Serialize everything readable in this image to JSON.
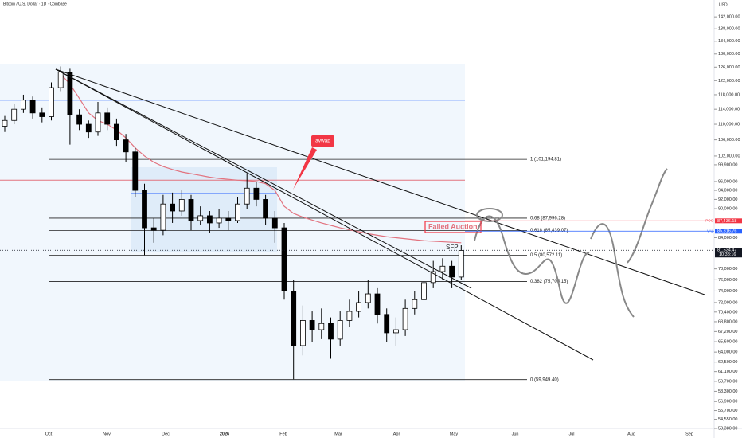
{
  "header": {
    "title": "Bitcoin / U.S. Dollar · 1D · Coinbase",
    "currency": "USD"
  },
  "chart_data": {
    "type": "candlestick",
    "log_scale": true,
    "up_color": "#ffffff",
    "down_color": "#000000",
    "ylim": [
      53380,
      147800
    ],
    "yticks": [
      {
        "value": 142000,
        "label": "142,000.00"
      },
      {
        "value": 138000,
        "label": "138,000.00"
      },
      {
        "value": 134000,
        "label": "134,000.00"
      },
      {
        "value": 130000,
        "label": "130,000.00"
      },
      {
        "value": 126000,
        "label": "126,000.00"
      },
      {
        "value": 122000,
        "label": "122,000.00"
      },
      {
        "value": 118000,
        "label": "118,000.00"
      },
      {
        "value": 114000,
        "label": "114,000.00"
      },
      {
        "value": 110000,
        "label": "110,000.00"
      },
      {
        "value": 106000,
        "label": "106,000.00"
      },
      {
        "value": 102000,
        "label": "102,000.00"
      },
      {
        "value": 99900,
        "label": "99,900.00"
      },
      {
        "value": 96000,
        "label": "96,000.00"
      },
      {
        "value": 94000,
        "label": "94,000.00"
      },
      {
        "value": 92000,
        "label": "92,000.00"
      },
      {
        "value": 90000,
        "label": "90,000.00"
      },
      {
        "value": 84000,
        "label": "84,000.00"
      },
      {
        "value": 78000,
        "label": "78,000.00"
      },
      {
        "value": 76000,
        "label": "76,000.00"
      },
      {
        "value": 74000,
        "label": "74,000.00"
      },
      {
        "value": 72000,
        "label": "72,000.00"
      },
      {
        "value": 70400,
        "label": "70,400.00"
      },
      {
        "value": 68800,
        "label": "68,800.00"
      },
      {
        "value": 67200,
        "label": "67,200.00"
      },
      {
        "value": 65600,
        "label": "65,600.00"
      },
      {
        "value": 64000,
        "label": "64,000.00"
      },
      {
        "value": 62500,
        "label": "62,500.00"
      },
      {
        "value": 61100,
        "label": "61,100.00"
      },
      {
        "value": 59700,
        "label": "59,700.00"
      },
      {
        "value": 58300,
        "label": "58,300.00"
      },
      {
        "value": 56900,
        "label": "56,900.00"
      },
      {
        "value": 55700,
        "label": "55,700.00"
      },
      {
        "value": 54550,
        "label": "54,550.00"
      },
      {
        "value": 53380,
        "label": "53,380.00"
      }
    ],
    "x_labels": [
      "Oct",
      "Nov",
      "Dec",
      "2026",
      "Feb",
      "Mar",
      "Apr",
      "May",
      "Jun",
      "Jul",
      "Aug",
      "Sep"
    ],
    "open": [
      109500,
      111000,
      114000,
      116500,
      113000,
      112000,
      120000,
      124500,
      112500,
      110000,
      108000,
      113000,
      110000,
      106000,
      103000,
      94000,
      86000,
      85500,
      91000,
      89500,
      92000,
      87500,
      88500,
      87000,
      88000,
      87500,
      91000,
      94500,
      92000,
      88000,
      86000,
      74000,
      65000,
      69000,
      67500,
      68500,
      66000,
      69000,
      70500,
      72000,
      73500,
      70000,
      67000,
      67500,
      71000,
      72500,
      75500,
      77500,
      78500,
      76500
    ],
    "high": [
      112200,
      115500,
      118000,
      117500,
      114500,
      121500,
      126200,
      125500,
      114000,
      111000,
      116000,
      114500,
      111500,
      107500,
      104000,
      95500,
      88000,
      93000,
      93500,
      94000,
      93000,
      90500,
      89500,
      90000,
      89500,
      92500,
      97900,
      96000,
      93000,
      89500,
      87000,
      76000,
      71500,
      70500,
      71000,
      69500,
      70500,
      72500,
      74000,
      76000,
      74500,
      71000,
      69500,
      72500,
      74000,
      77500,
      79500,
      80000,
      79500,
      82500
    ],
    "low": [
      108000,
      110000,
      113000,
      111500,
      110500,
      111000,
      119000,
      104800,
      108500,
      106500,
      107000,
      108500,
      104500,
      100500,
      92500,
      80600,
      83000,
      84500,
      87000,
      88500,
      85500,
      86500,
      85000,
      86000,
      85500,
      87000,
      90000,
      90500,
      86500,
      83000,
      72500,
      60000,
      63500,
      65500,
      66000,
      63000,
      65000,
      68000,
      69500,
      71000,
      68500,
      65500,
      65000,
      66500,
      70000,
      72000,
      74500,
      76000,
      74500,
      76000
    ],
    "close": [
      111000,
      114000,
      116500,
      113000,
      112000,
      120000,
      124500,
      112500,
      110000,
      108000,
      113000,
      110000,
      106000,
      103000,
      94000,
      86000,
      85500,
      91000,
      89500,
      92000,
      87500,
      88500,
      87000,
      88000,
      87500,
      91000,
      94500,
      92000,
      88000,
      86000,
      74000,
      65000,
      69000,
      67500,
      68500,
      66000,
      69000,
      70500,
      72000,
      73500,
      70000,
      67000,
      67500,
      71000,
      72500,
      75500,
      77500,
      78500,
      76500,
      81500
    ],
    "avwap": {
      "name": "avwap",
      "color": "#e2737f",
      "values": [
        null,
        null,
        null,
        null,
        null,
        null,
        124000,
        121000,
        117000,
        113000,
        111000,
        110000,
        108500,
        106500,
        104000,
        102000,
        100500,
        99500,
        98800,
        98200,
        97800,
        97400,
        97000,
        96700,
        96500,
        96300,
        96200,
        96000,
        95500,
        94000,
        90500,
        89000,
        88200,
        87600,
        87000,
        86500,
        86000,
        85600,
        85200,
        84800,
        84500,
        84200,
        84000,
        83800,
        83600,
        83400,
        83300,
        83200,
        83100,
        83000
      ]
    },
    "fib_levels": [
      {
        "value": 101194.81,
        "label": "1 (101,194.81)"
      },
      {
        "value": 87996.28,
        "label": "0.68 (87,996.28)"
      },
      {
        "value": 85439.07,
        "label": "0.618 (85,439.07)"
      },
      {
        "value": 80572.11,
        "label": "0.5 (80,572.11)"
      },
      {
        "value": 75705.15,
        "label": "0.382 (75,705.15)"
      },
      {
        "value": 59949.4,
        "label": "0 (59,949.40)"
      }
    ],
    "levels": [
      {
        "value": 116500,
        "color": "#2962ff"
      },
      {
        "value": 96300,
        "color": "#e2737f"
      },
      {
        "value": 93300,
        "color": "#2962ff"
      }
    ],
    "price_tags": [
      {
        "name": "POC",
        "value": 87436.18,
        "label": "87,436.18",
        "color": "#f23645"
      },
      {
        "name": "VAL",
        "value": 85316.76,
        "label": "85,316.76",
        "color": "#2962ff"
      },
      {
        "value": 81534.47,
        "label": "81,534.47",
        "countdown": "10:38:16",
        "color": "#131722"
      }
    ],
    "annotations": {
      "failed_auction": "Failed Auction",
      "sfp": "SFP"
    }
  }
}
